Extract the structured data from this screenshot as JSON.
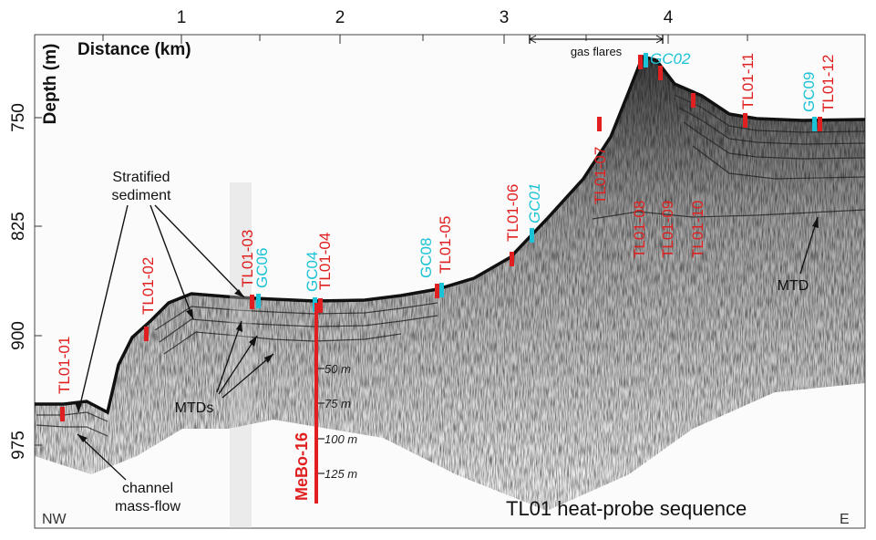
{
  "axes": {
    "x_title": "Distance (km)",
    "y_title": "Depth (m)",
    "x_ticks": [
      "1",
      "2",
      "3",
      "4"
    ],
    "y_ticks": [
      "750",
      "825",
      "900",
      "975"
    ]
  },
  "colors": {
    "heat_probe": "#e02020",
    "gravity_core": "#1cc3d6",
    "seismic_ink": "#1a1a1a"
  },
  "stations": {
    "heat_probes": [
      "TL01-01",
      "TL01-02",
      "TL01-03",
      "TL01-04",
      "TL01-05",
      "TL01-06",
      "TL01-07",
      "TL01-08",
      "TL01-09",
      "TL01-10",
      "TL01-11",
      "TL01-12"
    ],
    "cores": [
      "GC06",
      "GC04",
      "GC08",
      "GC01",
      "GC02",
      "GC09"
    ]
  },
  "annotations": {
    "gas_flares": "gas flares",
    "stratified_line1": "Stratified",
    "stratified_line2": "sediment",
    "mtds": "MTDs",
    "mtd": "MTD",
    "channel_line1": "channel",
    "channel_line2": "mass-flow"
  },
  "borehole": {
    "name": "MeBo-16",
    "depth_marks": [
      "50 m",
      "75 m",
      "100 m",
      "125 m"
    ]
  },
  "caption": "TL01 heat-probe sequence",
  "orientation": {
    "west": "NW",
    "east": "E"
  }
}
